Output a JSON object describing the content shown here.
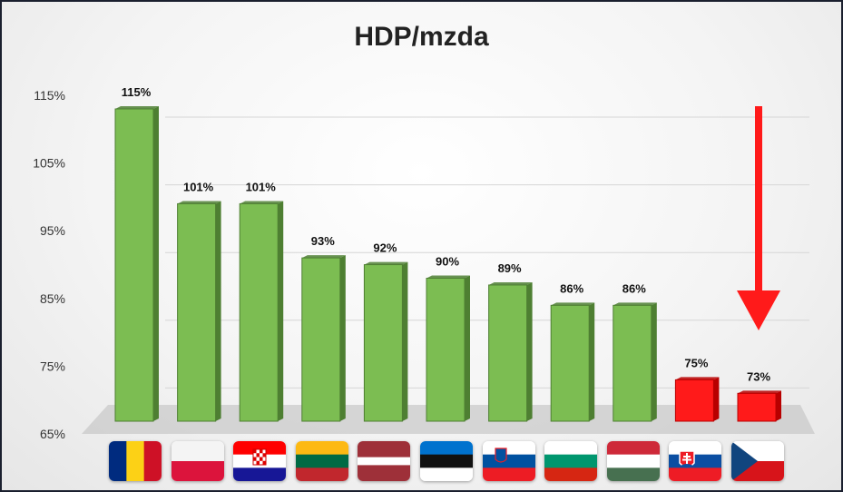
{
  "chart_data": {
    "type": "bar",
    "title": "HDP/mzda",
    "xlabel": "",
    "ylabel": "",
    "ylim": [
      65,
      115
    ],
    "yticks": [
      "65%",
      "75%",
      "85%",
      "95%",
      "105%",
      "115%"
    ],
    "ytick_values": [
      65,
      75,
      85,
      95,
      105,
      115
    ],
    "categories": [
      "RO",
      "PL",
      "HR",
      "LT",
      "LV",
      "EE",
      "SI",
      "BG",
      "HU",
      "SK",
      "CZ"
    ],
    "values": [
      115,
      101,
      101,
      93,
      92,
      90,
      89,
      86,
      86,
      75,
      73
    ],
    "data_labels": [
      "115%",
      "101%",
      "101%",
      "93%",
      "92%",
      "90%",
      "89%",
      "86%",
      "86%",
      "75%",
      "73%"
    ],
    "bar_colors": [
      "green",
      "green",
      "green",
      "green",
      "green",
      "green",
      "green",
      "green",
      "green",
      "red",
      "red"
    ],
    "annotations": [
      {
        "type": "arrow-down",
        "target": "CZ",
        "color": "#ff1a1a"
      }
    ]
  },
  "flags": [
    {
      "country": "RO",
      "icon": "flag-romania-icon"
    },
    {
      "country": "PL",
      "icon": "flag-poland-icon"
    },
    {
      "country": "HR",
      "icon": "flag-croatia-icon"
    },
    {
      "country": "LT",
      "icon": "flag-lithuania-icon"
    },
    {
      "country": "LV",
      "icon": "flag-latvia-icon"
    },
    {
      "country": "EE",
      "icon": "flag-estonia-icon"
    },
    {
      "country": "SI",
      "icon": "flag-slovenia-icon"
    },
    {
      "country": "BG",
      "icon": "flag-bulgaria-icon"
    },
    {
      "country": "HU",
      "icon": "flag-hungary-icon"
    },
    {
      "country": "SK",
      "icon": "flag-slovakia-icon"
    },
    {
      "country": "CZ",
      "icon": "flag-czechia-icon"
    }
  ],
  "colors": {
    "green_bar": "#7cbd52",
    "green_bar_side": "#4e7f32",
    "red_bar": "#ff1a1a",
    "red_bar_side": "#b80000",
    "arrow": "#ff1a1a",
    "gridline": "#d6d6d6",
    "floor": "#c8c8c8"
  }
}
